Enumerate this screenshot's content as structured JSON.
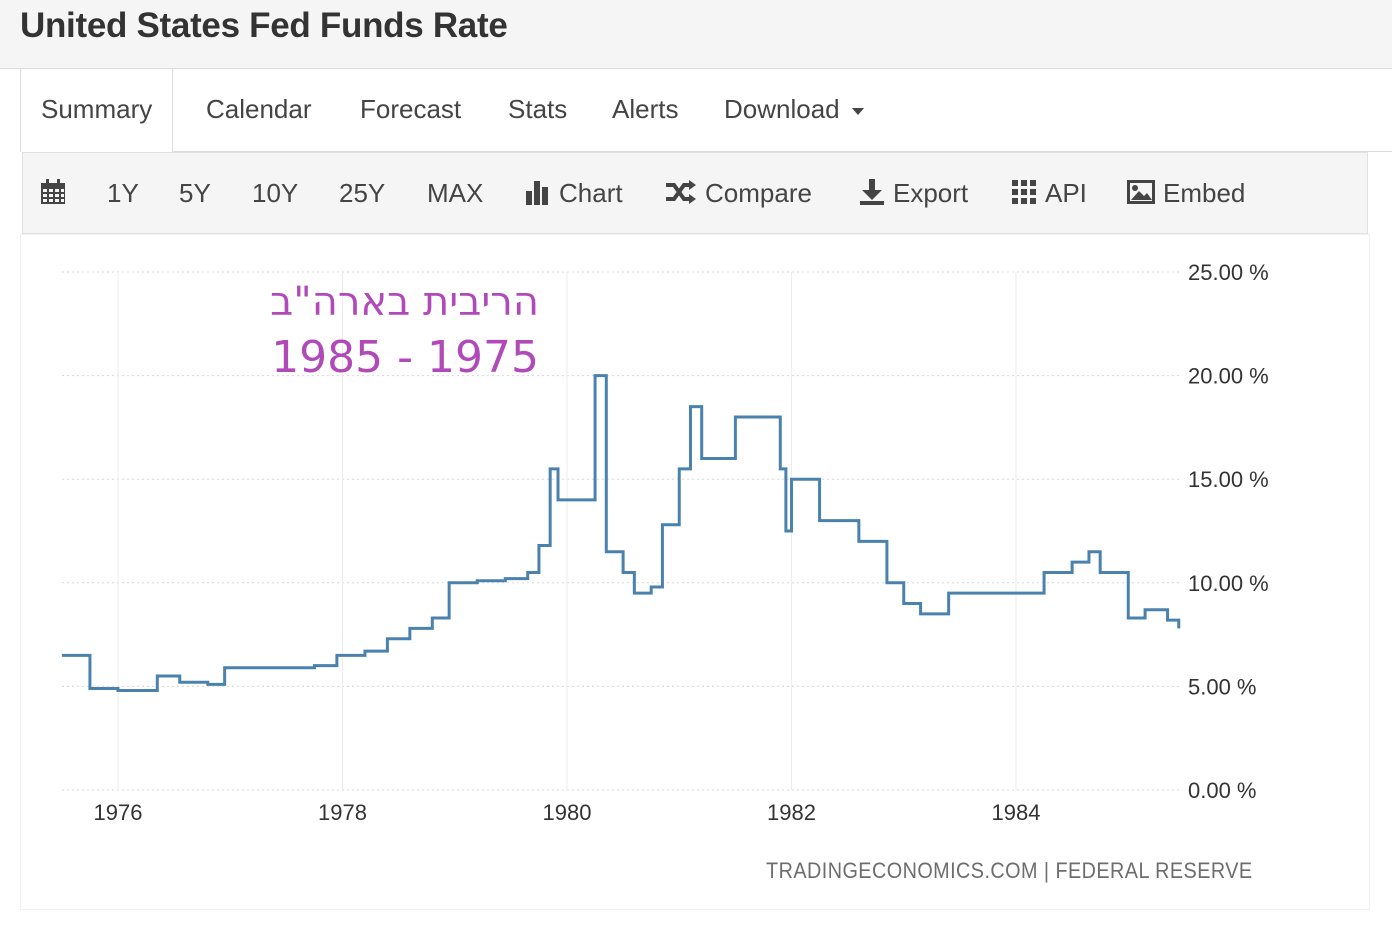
{
  "header": {
    "title": "United States Fed Funds Rate"
  },
  "tabs": [
    {
      "label": "Summary"
    },
    {
      "label": "Calendar"
    },
    {
      "label": "Forecast"
    },
    {
      "label": "Stats"
    },
    {
      "label": "Alerts"
    },
    {
      "label": "Download"
    }
  ],
  "toolbar": {
    "ranges": [
      "1Y",
      "5Y",
      "10Y",
      "25Y",
      "MAX"
    ],
    "chart": "Chart",
    "compare": "Compare",
    "export": "Export",
    "api": "API",
    "embed": "Embed"
  },
  "annotation": {
    "line1": "הריבית בארה\"ב",
    "line2": "1985 - 1975"
  },
  "credits": "TRADINGECONOMICS.COM  |  FEDERAL RESERVE",
  "colors": {
    "line": "#4a82ad",
    "annotation": "#b04ab8"
  },
  "chart_data": {
    "type": "line",
    "series": [
      {
        "x": [
          1975.5,
          1975.75,
          1976.0,
          1976.25,
          1976.35,
          1976.55,
          1976.8,
          1976.95,
          1977.25,
          1977.5,
          1977.75,
          1977.95,
          1978.2,
          1978.4,
          1978.6,
          1978.8,
          1978.95,
          1979.2,
          1979.45,
          1979.65,
          1979.75,
          1979.85,
          1979.92,
          1980.2,
          1980.25,
          1980.35,
          1980.5,
          1980.6,
          1980.75,
          1980.85,
          1981.0,
          1981.1,
          1981.2,
          1981.45,
          1981.5,
          1981.9,
          1981.95,
          1982.0,
          1982.25,
          1982.6,
          1982.85,
          1983.0,
          1983.15,
          1983.4,
          1983.75,
          1984.0,
          1984.25,
          1984.5,
          1984.65,
          1984.75,
          1984.85,
          1985.0,
          1985.15,
          1985.35,
          1985.45
        ],
        "y": [
          6.5,
          4.9,
          4.8,
          4.8,
          5.5,
          5.2,
          5.1,
          5.9,
          5.9,
          5.9,
          6.0,
          6.5,
          6.7,
          7.3,
          7.8,
          8.3,
          10.0,
          10.1,
          10.2,
          10.5,
          11.8,
          15.5,
          14.0,
          14.0,
          20.0,
          11.5,
          10.5,
          9.5,
          9.8,
          12.8,
          15.5,
          18.5,
          16.0,
          16.0,
          18.0,
          15.5,
          12.5,
          15.0,
          13.0,
          12.0,
          10.0,
          9.0,
          8.5,
          9.5,
          9.5,
          9.5,
          10.5,
          11.0,
          11.5,
          10.5,
          10.5,
          8.3,
          8.7,
          8.2,
          7.8
        ]
      }
    ],
    "x_ticks": [
      "1976",
      "1978",
      "1980",
      "1982",
      "1984"
    ],
    "y_ticks": [
      "25.00 %",
      "20.00 %",
      "15.00 %",
      "10.00 %",
      "5.00 %",
      "0.00 %"
    ],
    "xlim": [
      1975.5,
      1985.5
    ],
    "ylim": [
      0,
      25
    ],
    "grid": true
  }
}
